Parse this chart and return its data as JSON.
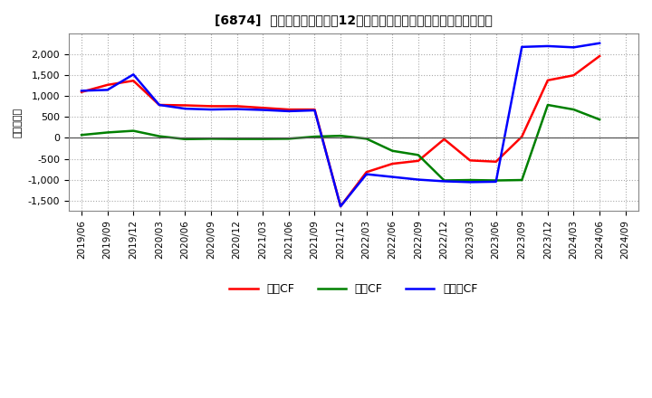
{
  "title": "[6874]  キャッシュフローの12か月移動合計の対前年同期増減額の推移",
  "ylabel": "（百万円）",
  "background_color": "#ffffff",
  "grid_color": "#aaaaaa",
  "plot_bg_color": "#ffffff",
  "x_labels": [
    "2019/06",
    "2019/09",
    "2019/12",
    "2020/03",
    "2020/06",
    "2020/09",
    "2020/12",
    "2021/03",
    "2021/06",
    "2021/09",
    "2021/12",
    "2022/03",
    "2022/06",
    "2022/09",
    "2022/12",
    "2023/03",
    "2023/06",
    "2023/09",
    "2023/12",
    "2024/03",
    "2024/06",
    "2024/09"
  ],
  "operating_cf": [
    1100,
    1270,
    1370,
    790,
    780,
    760,
    760,
    720,
    680,
    680,
    -1640,
    -820,
    -620,
    -550,
    -30,
    -540,
    -570,
    30,
    1380,
    1500,
    1960,
    null
  ],
  "investing_cf": [
    70,
    130,
    170,
    40,
    -30,
    -20,
    -25,
    -25,
    -20,
    30,
    50,
    -20,
    -310,
    -410,
    -1020,
    -1010,
    -1020,
    -1010,
    790,
    680,
    440,
    null
  ],
  "free_cf": [
    1130,
    1150,
    1520,
    790,
    700,
    680,
    690,
    670,
    640,
    660,
    -1640,
    -870,
    -935,
    -1000,
    -1040,
    -1060,
    -1050,
    2180,
    2200,
    2170,
    2270,
    null
  ],
  "operating_color": "#ff0000",
  "investing_color": "#008000",
  "free_color": "#0000ff",
  "ylim": [
    -1750,
    2500
  ],
  "yticks": [
    -1500,
    -1000,
    -500,
    0,
    500,
    1000,
    1500,
    2000
  ]
}
